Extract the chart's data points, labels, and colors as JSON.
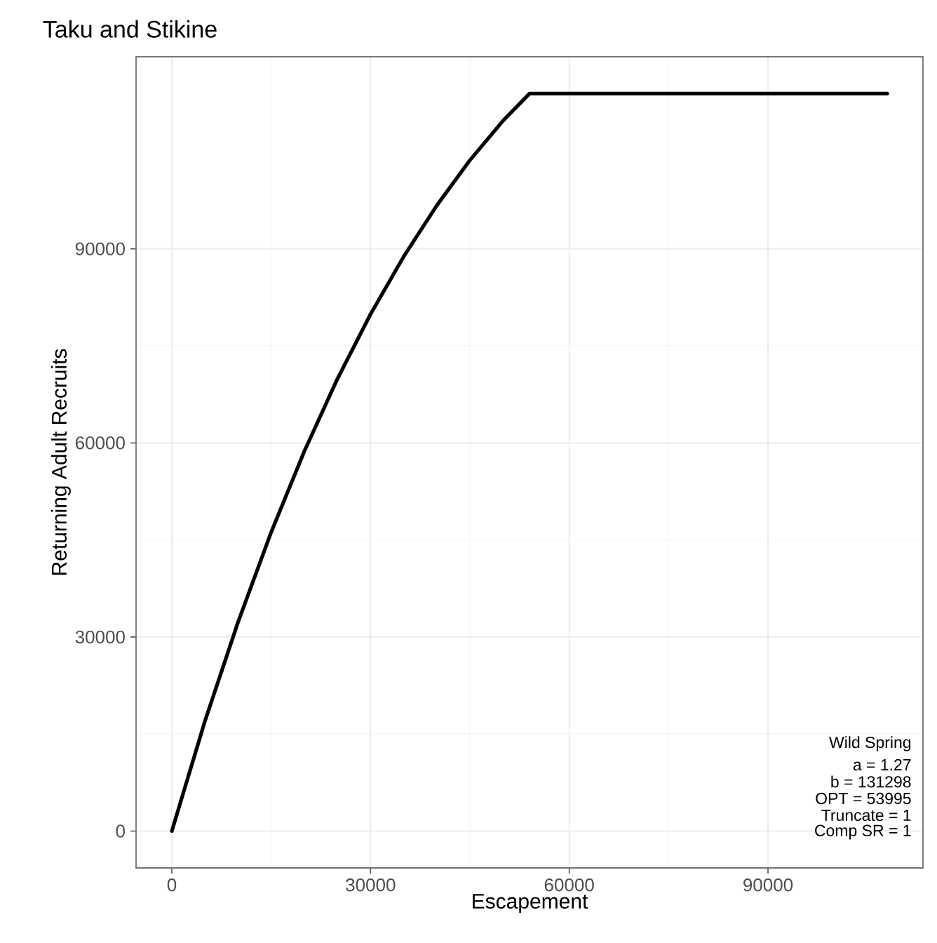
{
  "chart_data": {
    "type": "line",
    "title": "Taku and Stikine",
    "xlabel": "Escapement",
    "ylabel": "Returning Adult Recruits",
    "x": [
      0,
      5000,
      10000,
      15000,
      20000,
      25000,
      30000,
      35000,
      40000,
      45000,
      50000,
      54000,
      108000
    ],
    "values": [
      0,
      17000,
      32300,
      46200,
      58700,
      69900,
      79900,
      88800,
      96700,
      103700,
      109800,
      114000,
      114000
    ],
    "color": "#000000",
    "xlim": [
      -5400,
      113400
    ],
    "ylim": [
      -5700,
      119700
    ],
    "xticks": [
      0,
      30000,
      60000,
      90000
    ],
    "yticks": [
      0,
      30000,
      60000,
      90000
    ],
    "grid": true,
    "annotations": [
      "Wild Spring",
      "a =  1.27",
      "b =  131298",
      "OPT =  53995",
      "Truncate =  1",
      "Comp SR =  1"
    ]
  }
}
